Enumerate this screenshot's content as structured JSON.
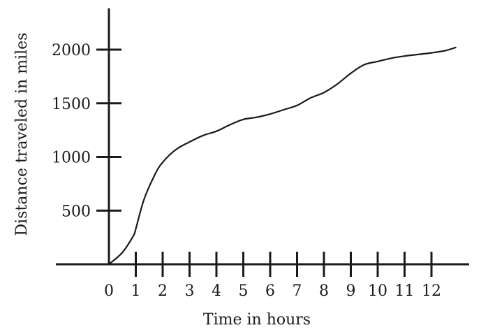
{
  "chart_data": {
    "type": "line",
    "title": "",
    "xlabel": "Time in hours",
    "ylabel": "Distance traveled in miles",
    "xlim": [
      0,
      13
    ],
    "ylim": [
      0,
      2400
    ],
    "x_ticks": [
      0,
      1,
      2,
      3,
      4,
      5,
      6,
      7,
      8,
      9,
      10,
      11,
      12
    ],
    "x_tick_labels": [
      "0",
      "1",
      "2",
      "3",
      "4",
      "5",
      "6",
      "7",
      "8",
      "9",
      "10",
      "11",
      "12"
    ],
    "y_ticks": [
      500,
      1000,
      1500,
      2000
    ],
    "y_tick_labels": [
      "500",
      "1000",
      "1500",
      "2000"
    ],
    "grid": false,
    "series": [
      {
        "x": [
          0,
          0.5,
          0.9,
          1.0,
          1.3,
          1.7,
          2.0,
          2.5,
          3.0,
          3.5,
          4.0,
          4.5,
          5.0,
          5.5,
          6.0,
          6.5,
          7.0,
          7.5,
          8.0,
          8.5,
          9.0,
          9.5,
          10.0,
          10.5,
          11.0,
          11.5,
          12.0,
          12.5,
          12.9
        ],
        "y": [
          0,
          110,
          260,
          330,
          600,
          830,
          950,
          1070,
          1140,
          1200,
          1240,
          1300,
          1350,
          1370,
          1400,
          1440,
          1480,
          1550,
          1600,
          1680,
          1780,
          1860,
          1890,
          1920,
          1940,
          1955,
          1970,
          1990,
          2020
        ]
      }
    ],
    "colors": {
      "line": "#1a1a1a",
      "axis": "#1a1a1a",
      "text": "#1a1a1a"
    }
  }
}
